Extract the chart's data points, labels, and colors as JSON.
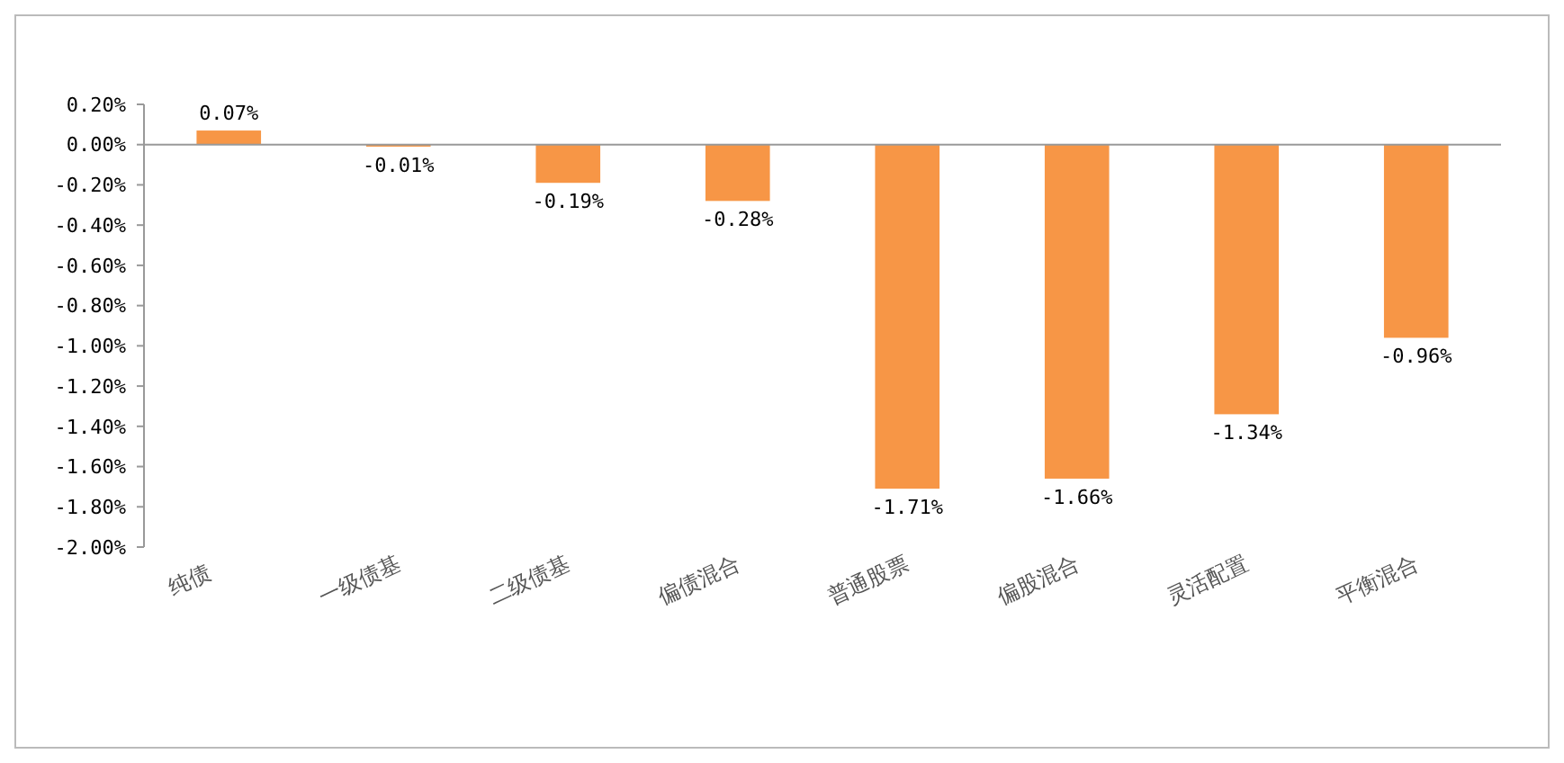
{
  "chart_data": {
    "type": "bar",
    "categories": [
      "纯债",
      "一级债基",
      "二级债基",
      "偏债混合",
      "普通股票",
      "偏股混合",
      "灵活配置",
      "平衡混合"
    ],
    "values": [
      0.07,
      -0.01,
      -0.19,
      -0.28,
      -1.71,
      -1.66,
      -1.34,
      -0.96
    ],
    "value_labels": [
      "0.07%",
      "-0.01%",
      "-0.19%",
      "-0.28%",
      "-1.71%",
      "-1.66%",
      "-1.34%",
      "-0.96%"
    ],
    "color": "#f79646",
    "ylim": [
      -2,
      0.2
    ],
    "yticks": [
      {
        "value": 0.2,
        "label": "0.20%"
      },
      {
        "value": 0,
        "label": "0.00%"
      },
      {
        "value": -0.2,
        "label": "-0.20%"
      },
      {
        "value": -0.4,
        "label": "-0.40%"
      },
      {
        "value": -0.6,
        "label": "-0.60%"
      },
      {
        "value": -0.8,
        "label": "-0.80%"
      },
      {
        "value": -1,
        "label": "-1.00%"
      },
      {
        "value": -1.2,
        "label": "-1.20%"
      },
      {
        "value": -1.4,
        "label": "-1.40%"
      },
      {
        "value": -1.6,
        "label": "-1.60%"
      },
      {
        "value": -1.8,
        "label": "-1.80%"
      },
      {
        "value": -2,
        "label": "-2.00%"
      }
    ],
    "data_labels": true
  }
}
